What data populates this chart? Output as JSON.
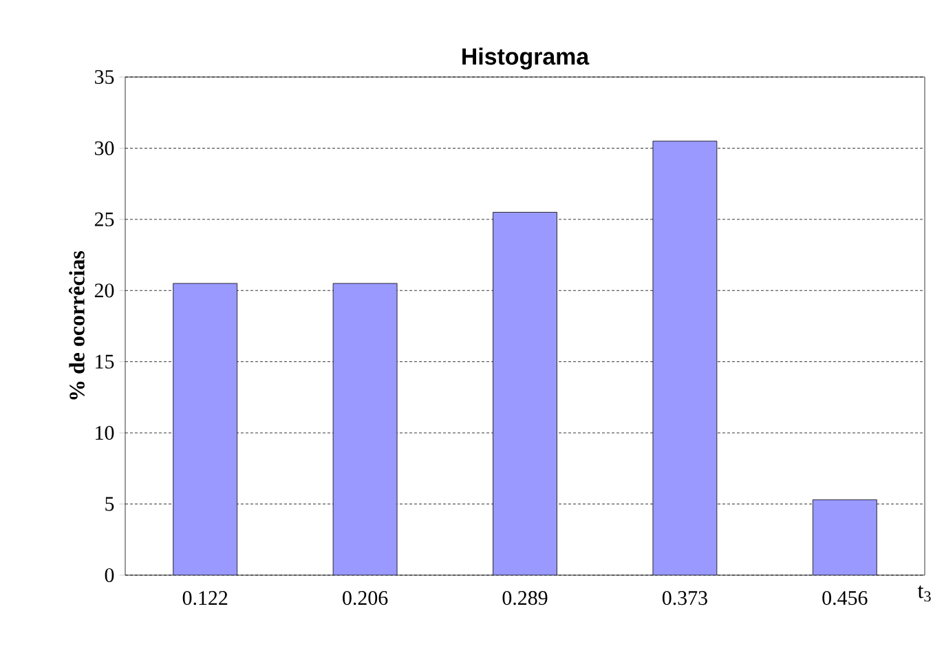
{
  "chart_data": {
    "type": "bar",
    "title": "Histograma",
    "xlabel": "t$_{3}$",
    "ylabel": "% de ocorrêcias",
    "categories": [
      "0.122",
      "0.206",
      "0.289",
      "0.373",
      "0.456"
    ],
    "values": [
      20.5,
      20.5,
      25.5,
      30.5,
      5.3
    ],
    "color": "#9999ff",
    "ylim": [
      0,
      35
    ],
    "yticks": [
      0,
      5,
      10,
      15,
      20,
      25,
      30,
      35
    ],
    "grid": "y"
  }
}
